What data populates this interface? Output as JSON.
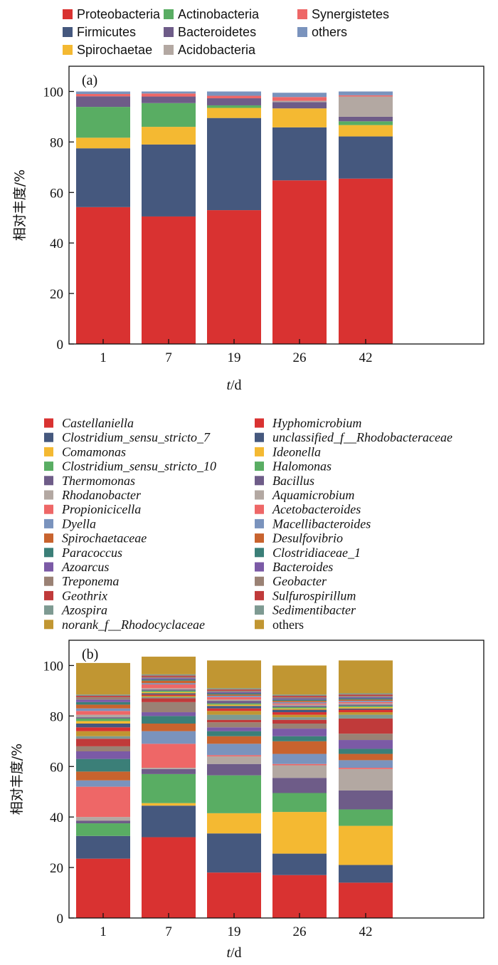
{
  "chart_data": [
    {
      "type": "bar",
      "stacked": true,
      "panel_label": "(a)",
      "categories": [
        "1",
        "7",
        "19",
        "26",
        "42"
      ],
      "xlabel_var": "t",
      "xlabel_unit": "/d",
      "ylabel": "相对丰度/%",
      "ylim": [
        0,
        110
      ],
      "yticks": [
        0,
        20,
        40,
        60,
        80,
        100
      ],
      "legend_position": "top",
      "series": [
        {
          "name": "Proteobacteria",
          "color": "#d93231",
          "values": [
            54.2,
            50.5,
            53.0,
            64.8,
            65.5
          ]
        },
        {
          "name": "Firmicutes",
          "color": "#45587e",
          "values": [
            23.3,
            28.5,
            36.5,
            21.0,
            16.7
          ]
        },
        {
          "name": "Spirochaetae",
          "color": "#f4b932",
          "values": [
            4.2,
            7.0,
            4.0,
            7.5,
            4.5
          ]
        },
        {
          "name": "Actinobacteria",
          "color": "#59ad63",
          "values": [
            12.2,
            9.4,
            1.0,
            0.0,
            1.5
          ]
        },
        {
          "name": "Bacteroidetes",
          "color": "#6e5c88",
          "values": [
            4.2,
            2.6,
            2.8,
            2.5,
            1.8
          ]
        },
        {
          "name": "Acidobacteria",
          "color": "#b3a8a2",
          "values": [
            0.0,
            0.0,
            0.0,
            0.5,
            8.0
          ]
        },
        {
          "name": "Synergistetes",
          "color": "#ee6767",
          "values": [
            0.9,
            1.2,
            1.0,
            1.5,
            0.5
          ]
        },
        {
          "name": "others",
          "color": "#7a93bd",
          "values": [
            1.0,
            0.8,
            1.7,
            1.7,
            1.5
          ]
        }
      ]
    },
    {
      "type": "bar",
      "stacked": true,
      "panel_label": "(b)",
      "categories": [
        "1",
        "7",
        "19",
        "26",
        "42"
      ],
      "xlabel_var": "t",
      "xlabel_unit": "/d",
      "ylabel": "相对丰度/%",
      "ylim": [
        0,
        110
      ],
      "yticks": [
        0,
        20,
        40,
        60,
        80,
        100
      ],
      "legend_position": "top",
      "series": [
        {
          "name": "Castellaniella",
          "italic": true,
          "color": "#d93231",
          "values": [
            23.5,
            32.0,
            18.0,
            17.0,
            14.0
          ]
        },
        {
          "name": "Clostridium_sensu_stricto_7",
          "italic": true,
          "color": "#45587e",
          "values": [
            9.0,
            12.5,
            15.5,
            8.5,
            7.0
          ]
        },
        {
          "name": "Comamonas",
          "italic": true,
          "color": "#f4b932",
          "values": [
            0.0,
            1.0,
            8.0,
            16.5,
            15.5
          ]
        },
        {
          "name": "Clostridium_sensu_stricto_10",
          "italic": true,
          "color": "#59ad63",
          "values": [
            5.0,
            11.5,
            15.0,
            7.5,
            6.5
          ]
        },
        {
          "name": "Thermomonas",
          "italic": true,
          "color": "#6e5c88",
          "values": [
            1.0,
            2.0,
            4.5,
            6.0,
            7.5
          ]
        },
        {
          "name": "Rhodanobacter",
          "italic": true,
          "color": "#b3a8a2",
          "values": [
            1.5,
            0.5,
            3.0,
            5.0,
            8.5
          ]
        },
        {
          "name": "Propionicicella",
          "italic": true,
          "color": "#ee6767",
          "values": [
            12.0,
            9.5,
            0.5,
            0.5,
            0.5
          ]
        },
        {
          "name": "Dyella",
          "italic": true,
          "color": "#7a93bd",
          "values": [
            2.5,
            5.0,
            4.5,
            4.0,
            3.0
          ]
        },
        {
          "name": "Spirochaetaceae",
          "italic": true,
          "color": "#c8632e",
          "values": [
            3.5,
            3.0,
            3.0,
            5.0,
            2.5
          ]
        },
        {
          "name": "Paracoccus",
          "italic": true,
          "color": "#3b7f78",
          "values": [
            5.0,
            3.0,
            2.0,
            2.0,
            2.0
          ]
        },
        {
          "name": "Azoarcus",
          "italic": true,
          "color": "#7b5aa6",
          "values": [
            3.0,
            1.5,
            1.5,
            3.0,
            3.5
          ]
        },
        {
          "name": "Treponema",
          "italic": true,
          "color": "#9a8174",
          "values": [
            2.0,
            4.0,
            2.0,
            2.0,
            2.5
          ]
        },
        {
          "name": "Geothrix",
          "italic": true,
          "color": "#c03a3a",
          "values": [
            3.0,
            1.5,
            1.0,
            1.5,
            6.0
          ]
        },
        {
          "name": "Azospira",
          "italic": true,
          "color": "#7e9a92",
          "values": [
            1.0,
            0.5,
            2.0,
            1.0,
            1.5
          ]
        },
        {
          "name": "norank_f__Rhodocyclaceae",
          "italic": true,
          "color": "#c19632",
          "values": [
            2.0,
            0.5,
            1.5,
            1.0,
            1.0
          ]
        },
        {
          "name": "Hyphomicrobium",
          "italic": true,
          "color": "#d93231",
          "values": [
            1.5,
            0.5,
            1.0,
            1.0,
            1.0
          ]
        },
        {
          "name": "unclassified_f__Rhodobacteraceae",
          "italic": true,
          "color": "#45587e",
          "values": [
            1.5,
            0.5,
            1.0,
            1.0,
            0.5
          ]
        },
        {
          "name": "Ideonella",
          "italic": true,
          "color": "#f4b932",
          "values": [
            1.0,
            0.5,
            0.5,
            0.5,
            0.5
          ]
        },
        {
          "name": "Halomonas",
          "italic": true,
          "color": "#59ad63",
          "values": [
            1.0,
            0.5,
            0.5,
            0.5,
            0.5
          ]
        },
        {
          "name": "Bacillus",
          "italic": true,
          "color": "#6e5c88",
          "values": [
            0.5,
            0.5,
            1.0,
            0.5,
            0.5
          ]
        },
        {
          "name": "Aquamicrobium",
          "italic": true,
          "color": "#b3a8a2",
          "values": [
            1.0,
            0.5,
            0.5,
            0.5,
            0.5
          ]
        },
        {
          "name": "Acetobacteroides",
          "italic": true,
          "color": "#ee6767",
          "values": [
            1.5,
            1.5,
            1.0,
            0.5,
            0.5
          ]
        },
        {
          "name": "Macellibacteroides",
          "italic": true,
          "color": "#7a93bd",
          "values": [
            1.0,
            0.5,
            0.5,
            0.5,
            0.5
          ]
        },
        {
          "name": "Desulfovibrio",
          "italic": true,
          "color": "#c8632e",
          "values": [
            1.5,
            1.0,
            0.5,
            0.5,
            0.5
          ]
        },
        {
          "name": "Clostridiaceae_1",
          "italic": true,
          "color": "#3b7f78",
          "values": [
            1.0,
            0.5,
            0.5,
            0.5,
            0.5
          ]
        },
        {
          "name": "Bacteroides",
          "italic": true,
          "color": "#7b5aa6",
          "values": [
            1.0,
            0.5,
            0.5,
            0.5,
            0.5
          ]
        },
        {
          "name": "Geobacter",
          "italic": true,
          "color": "#9a8174",
          "values": [
            1.0,
            0.5,
            0.5,
            0.5,
            0.5
          ]
        },
        {
          "name": "Sulfurospirillum",
          "italic": true,
          "color": "#c03a3a",
          "values": [
            0.5,
            0.5,
            0.5,
            0.5,
            0.5
          ]
        },
        {
          "name": "Sedimentibacter",
          "italic": true,
          "color": "#7e9a92",
          "values": [
            0.5,
            0.5,
            0.5,
            0.5,
            0.5
          ]
        },
        {
          "name": "others",
          "italic": false,
          "color": "#c19632",
          "values": [
            12.5,
            7.0,
            11.0,
            11.5,
            13.0
          ]
        }
      ]
    }
  ]
}
